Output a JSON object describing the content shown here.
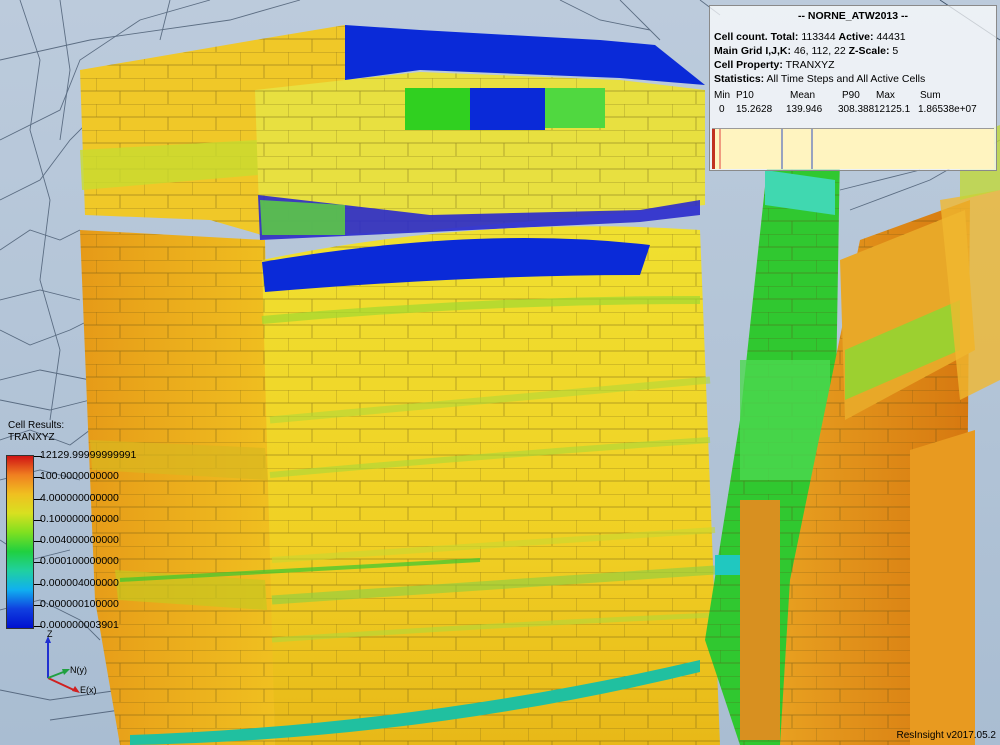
{
  "info": {
    "title": "-- NORNE_ATW2013 --",
    "cell_count_label": "Cell count. Total:",
    "cell_count_total": "113344",
    "active_label": "Active:",
    "active_count": "44431",
    "main_grid_label": "Main Grid I,J,K:",
    "main_grid_dims": "46, 112, 22",
    "zscale_label": "Z-Scale:",
    "zscale_value": "5",
    "property_label": "Cell Property:",
    "property_value": "TRANXYZ",
    "statistics_label": "Statistics:",
    "statistics_value": "All Time Steps and All Active Cells",
    "stats_headers": [
      "Min",
      "P10",
      "Mean",
      "P90",
      "Max",
      "Sum"
    ],
    "stats_values": [
      "0",
      "15.2628",
      "139.946",
      "308.388",
      "12125.1",
      "1.86538e+07"
    ]
  },
  "legend": {
    "title": "Cell Results:",
    "property": "TRANXYZ",
    "labels": [
      "12129.99999999991",
      "100.0000000000",
      "4.000000000000",
      "0.100000000000",
      "0.004000000000",
      "0.000100000000",
      "0.000004000000",
      "0.000000100000",
      "0.000000003901"
    ],
    "colors": [
      "#d01414",
      "#f08020",
      "#f0c020",
      "#d8e020",
      "#80e020",
      "#20d040",
      "#20d0a0",
      "#10b0f0",
      "#1040e0",
      "#0010d0"
    ]
  },
  "axis": {
    "z_label": "Z",
    "n_label": "N(y)",
    "e_label": "E(x)"
  },
  "footer": {
    "version": "ResInsight v2017.05.2"
  }
}
